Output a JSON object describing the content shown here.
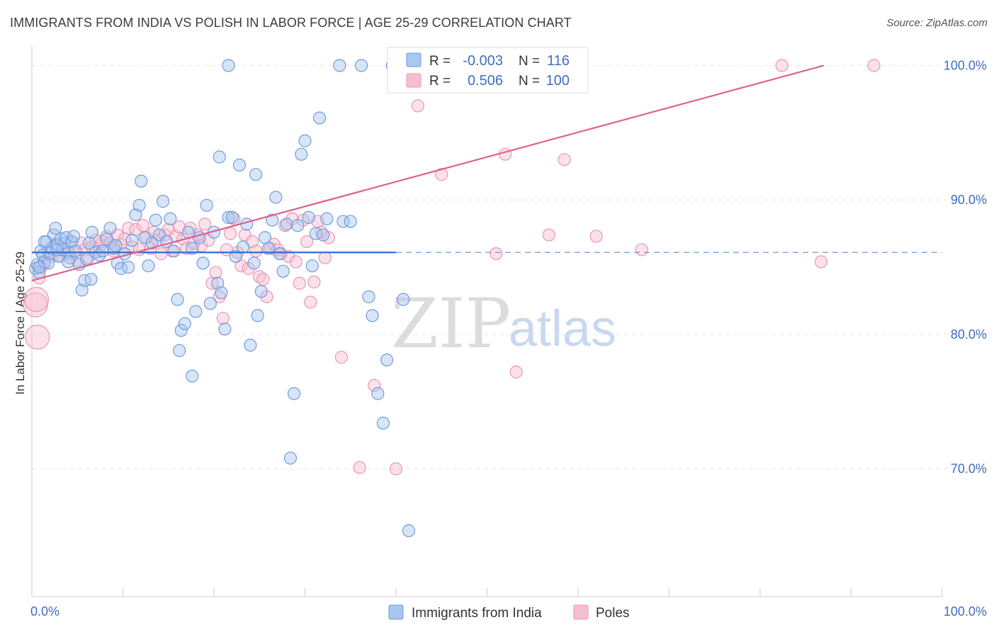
{
  "title": "IMMIGRANTS FROM INDIA VS POLISH IN LABOR FORCE | AGE 25-29 CORRELATION CHART",
  "source": "Source: ZipAtlas.com",
  "watermark": {
    "zip": "ZIP",
    "atlas": "atlas"
  },
  "legend_box": {
    "r_label": "R =",
    "n_label": "N =",
    "rows": [
      {
        "r": "-0.003",
        "n": "116"
      },
      {
        "r": "0.506",
        "n": "100"
      }
    ]
  },
  "colors": {
    "blue_fill": "#a9c6ee",
    "blue_stroke": "#6f9ce0",
    "blue_line": "#2e6fd0",
    "pink_fill": "#f6bfd0",
    "pink_stroke": "#ec95b0",
    "pink_line": "#e0628e",
    "tick_text": "#3f6fbf",
    "grid": "#e6e6e6"
  },
  "chart_data": {
    "type": "scatter",
    "title": "IMMIGRANTS FROM INDIA VS POLISH IN LABOR FORCE | AGE 25-29 CORRELATION CHART",
    "xlabel": "",
    "ylabel": "In Labor Force | Age 25-29",
    "xlim": [
      0,
      100
    ],
    "ylim": [
      60.5,
      101.5
    ],
    "x_tick_labels": [
      "0.0%",
      "100.0%"
    ],
    "y_ticks": [
      70,
      80,
      90,
      100
    ],
    "y_tick_labels": [
      "70.0%",
      "80.0%",
      "90.0%",
      "100.0%"
    ],
    "grid": true,
    "legend_position": "bottom-center",
    "series": [
      {
        "name": "Immigrants from India",
        "r": -0.003,
        "n": 116,
        "trend": {
          "x0": 0.0,
          "y0": 86.1,
          "x1": 40.0,
          "y1": 86.1,
          "dashed_to": 100.0
        },
        "points": [
          [
            0.4,
            84.9
          ],
          [
            0.6,
            85.2
          ],
          [
            0.8,
            84.6
          ],
          [
            1.0,
            86.2
          ],
          [
            1.2,
            85.9
          ],
          [
            1.4,
            85.4
          ],
          [
            1.6,
            86.9
          ],
          [
            1.8,
            85.3
          ],
          [
            2.0,
            86.0
          ],
          [
            2.2,
            86.4
          ],
          [
            2.4,
            87.4
          ],
          [
            2.6,
            87.9
          ],
          [
            2.8,
            86.7
          ],
          [
            3.0,
            85.8
          ],
          [
            3.2,
            87.1
          ],
          [
            3.4,
            86.3
          ],
          [
            3.6,
            86.8
          ],
          [
            3.8,
            87.2
          ],
          [
            4.0,
            86.1
          ],
          [
            4.2,
            85.7
          ],
          [
            4.4,
            86.9
          ],
          [
            4.6,
            87.3
          ],
          [
            4.8,
            86.2
          ],
          [
            5.2,
            85.2
          ],
          [
            5.5,
            83.3
          ],
          [
            5.8,
            84.0
          ],
          [
            6.0,
            85.6
          ],
          [
            6.3,
            86.8
          ],
          [
            6.6,
            87.6
          ],
          [
            7.0,
            86.1
          ],
          [
            7.4,
            85.9
          ],
          [
            7.8,
            86.2
          ],
          [
            8.2,
            87.1
          ],
          [
            8.6,
            87.9
          ],
          [
            9.0,
            86.4
          ],
          [
            9.4,
            85.3
          ],
          [
            9.8,
            84.9
          ],
          [
            10.2,
            86.0
          ],
          [
            10.6,
            85.0
          ],
          [
            11.0,
            87.0
          ],
          [
            11.4,
            88.9
          ],
          [
            11.8,
            89.6
          ],
          [
            12.0,
            91.4
          ],
          [
            12.4,
            87.2
          ],
          [
            12.8,
            85.1
          ],
          [
            13.2,
            86.8
          ],
          [
            13.6,
            88.5
          ],
          [
            14.0,
            87.4
          ],
          [
            14.4,
            89.9
          ],
          [
            14.8,
            86.9
          ],
          [
            15.2,
            88.6
          ],
          [
            15.6,
            86.2
          ],
          [
            16.0,
            82.6
          ],
          [
            16.4,
            80.3
          ],
          [
            16.8,
            80.8
          ],
          [
            17.2,
            87.6
          ],
          [
            17.6,
            86.4
          ],
          [
            18.0,
            81.7
          ],
          [
            18.4,
            87.2
          ],
          [
            18.8,
            85.3
          ],
          [
            19.2,
            89.6
          ],
          [
            19.6,
            82.3
          ],
          [
            20.0,
            87.6
          ],
          [
            20.4,
            83.8
          ],
          [
            20.8,
            83.1
          ],
          [
            21.2,
            80.4
          ],
          [
            21.6,
            88.7
          ],
          [
            22.0,
            88.7
          ],
          [
            22.4,
            85.8
          ],
          [
            22.8,
            92.6
          ],
          [
            23.2,
            86.5
          ],
          [
            23.6,
            88.2
          ],
          [
            24.0,
            79.2
          ],
          [
            24.4,
            85.3
          ],
          [
            24.8,
            81.4
          ],
          [
            25.2,
            83.2
          ],
          [
            25.6,
            87.2
          ],
          [
            26.0,
            86.4
          ],
          [
            26.4,
            88.5
          ],
          [
            26.8,
            90.2
          ],
          [
            27.2,
            86.0
          ],
          [
            27.6,
            84.7
          ],
          [
            28.0,
            88.2
          ],
          [
            28.4,
            70.8
          ],
          [
            28.8,
            75.6
          ],
          [
            29.2,
            88.1
          ],
          [
            29.6,
            93.4
          ],
          [
            30.0,
            94.4
          ],
          [
            30.4,
            88.7
          ],
          [
            30.8,
            85.1
          ],
          [
            31.2,
            87.5
          ],
          [
            31.6,
            96.1
          ],
          [
            32.0,
            87.4
          ],
          [
            32.4,
            88.6
          ],
          [
            33.8,
            100.0
          ],
          [
            34.2,
            88.4
          ],
          [
            35.0,
            88.4
          ],
          [
            36.2,
            100.0
          ],
          [
            37.0,
            82.8
          ],
          [
            37.4,
            81.4
          ],
          [
            38.0,
            75.6
          ],
          [
            38.6,
            73.4
          ],
          [
            39.0,
            78.1
          ],
          [
            39.6,
            100.0
          ],
          [
            40.2,
            100.0
          ],
          [
            40.8,
            82.6
          ],
          [
            41.4,
            65.4
          ],
          [
            17.6,
            76.9
          ],
          [
            16.2,
            78.8
          ],
          [
            21.6,
            100.0
          ],
          [
            20.6,
            93.2
          ],
          [
            24.6,
            91.9
          ],
          [
            0.8,
            85.0
          ],
          [
            1.4,
            86.9
          ],
          [
            2.8,
            86.3
          ],
          [
            4.0,
            85.4
          ],
          [
            6.5,
            84.1
          ],
          [
            9.2,
            86.6
          ]
        ]
      },
      {
        "name": "Poles",
        "r": 0.506,
        "n": 100,
        "trend": {
          "x0": 0.0,
          "y0": 84.0,
          "x1": 87.0,
          "y1": 100.0
        },
        "points": [
          [
            0.4,
            82.2
          ],
          [
            0.6,
            79.8
          ],
          [
            0.8,
            84.2
          ],
          [
            1.0,
            85.0
          ],
          [
            1.4,
            85.3
          ],
          [
            1.8,
            86.2
          ],
          [
            2.2,
            85.8
          ],
          [
            2.6,
            86.7
          ],
          [
            3.0,
            85.9
          ],
          [
            3.4,
            86.4
          ],
          [
            3.8,
            86.0
          ],
          [
            4.2,
            86.9
          ],
          [
            4.6,
            86.1
          ],
          [
            5.0,
            85.5
          ],
          [
            5.4,
            86.8
          ],
          [
            5.8,
            86.3
          ],
          [
            6.2,
            85.7
          ],
          [
            6.6,
            86.5
          ],
          [
            7.0,
            87.0
          ],
          [
            7.4,
            86.2
          ],
          [
            7.8,
            86.9
          ],
          [
            8.2,
            87.3
          ],
          [
            8.6,
            86.8
          ],
          [
            9.0,
            86.2
          ],
          [
            9.4,
            87.4
          ],
          [
            9.8,
            86.7
          ],
          [
            10.2,
            87.1
          ],
          [
            10.6,
            87.9
          ],
          [
            11.0,
            86.5
          ],
          [
            11.4,
            87.8
          ],
          [
            11.8,
            86.3
          ],
          [
            12.2,
            88.1
          ],
          [
            12.6,
            87.2
          ],
          [
            13.0,
            86.4
          ],
          [
            13.4,
            87.6
          ],
          [
            13.8,
            87.0
          ],
          [
            14.2,
            86.0
          ],
          [
            14.6,
            87.4
          ],
          [
            15.0,
            87.8
          ],
          [
            15.4,
            86.2
          ],
          [
            15.8,
            87.3
          ],
          [
            16.2,
            88.0
          ],
          [
            16.6,
            87.1
          ],
          [
            17.0,
            86.4
          ],
          [
            17.4,
            87.9
          ],
          [
            17.8,
            86.8
          ],
          [
            18.2,
            87.4
          ],
          [
            18.6,
            86.6
          ],
          [
            19.0,
            88.2
          ],
          [
            19.4,
            87.0
          ],
          [
            19.8,
            83.8
          ],
          [
            20.2,
            84.6
          ],
          [
            20.6,
            82.8
          ],
          [
            21.0,
            81.2
          ],
          [
            21.4,
            86.3
          ],
          [
            21.8,
            87.5
          ],
          [
            22.2,
            88.6
          ],
          [
            22.6,
            86.1
          ],
          [
            23.0,
            85.1
          ],
          [
            23.4,
            87.4
          ],
          [
            23.8,
            84.9
          ],
          [
            24.2,
            86.9
          ],
          [
            24.6,
            86.2
          ],
          [
            25.0,
            84.3
          ],
          [
            25.4,
            84.1
          ],
          [
            25.8,
            82.8
          ],
          [
            26.2,
            86.4
          ],
          [
            26.6,
            86.7
          ],
          [
            27.0,
            86.3
          ],
          [
            27.4,
            86.0
          ],
          [
            27.8,
            88.1
          ],
          [
            28.2,
            85.8
          ],
          [
            28.6,
            88.6
          ],
          [
            29.0,
            85.4
          ],
          [
            29.4,
            83.8
          ],
          [
            29.8,
            88.5
          ],
          [
            30.2,
            86.9
          ],
          [
            30.6,
            82.4
          ],
          [
            31.0,
            83.9
          ],
          [
            31.4,
            88.4
          ],
          [
            31.8,
            87.6
          ],
          [
            32.2,
            85.7
          ],
          [
            32.6,
            87.2
          ],
          [
            34.0,
            78.3
          ],
          [
            36.0,
            70.1
          ],
          [
            37.6,
            76.2
          ],
          [
            40.0,
            70.0
          ],
          [
            42.4,
            97.0
          ],
          [
            45.0,
            91.9
          ],
          [
            51.0,
            86.0
          ],
          [
            52.0,
            93.4
          ],
          [
            53.2,
            77.2
          ],
          [
            56.8,
            87.4
          ],
          [
            58.5,
            93.0
          ],
          [
            62.0,
            87.3
          ],
          [
            67.0,
            86.3
          ],
          [
            82.4,
            100.0
          ],
          [
            86.7,
            85.4
          ],
          [
            92.5,
            100.0
          ],
          [
            0.5,
            82.6
          ]
        ]
      }
    ]
  },
  "legend_bottom": [
    {
      "label": "Immigrants from India"
    },
    {
      "label": "Poles"
    }
  ]
}
